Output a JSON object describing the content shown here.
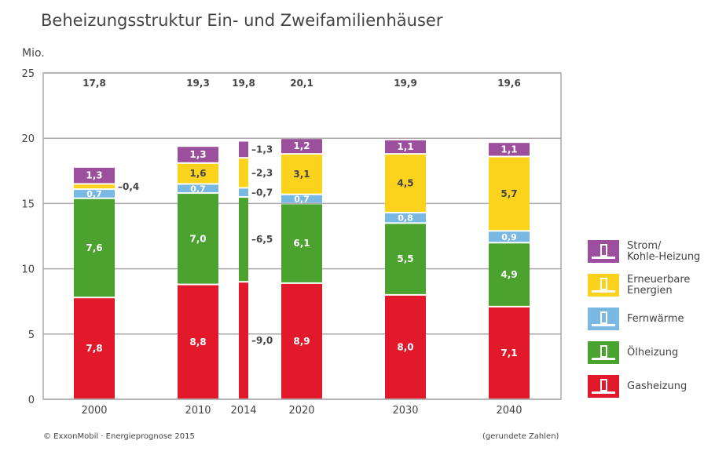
{
  "chart_data": {
    "type": "bar",
    "stacked": true,
    "title": "Beheizungsstruktur Ein- und Zweifamilienhäuser",
    "ylabel": "Mio.",
    "ylim": [
      0,
      25
    ],
    "yticks": [
      0,
      5,
      10,
      15,
      20,
      25
    ],
    "categories": [
      "2000",
      "2010",
      "2014",
      "2020",
      "2030",
      "2040"
    ],
    "totals": [
      "17,8",
      "19,3",
      "19,8",
      "20,1",
      "19,9",
      "19,6"
    ],
    "series": [
      {
        "name": "Gasheizung",
        "color": "#e2192b",
        "values": [
          7.8,
          8.8,
          9.0,
          8.9,
          8.0,
          7.1
        ],
        "labels": [
          "7,8",
          "8,8",
          "9,0",
          "8,9",
          "8,0",
          "7,1"
        ]
      },
      {
        "name": "Ölheizung",
        "color": "#4ca22f",
        "values": [
          7.6,
          7.0,
          6.5,
          6.1,
          5.5,
          4.9
        ],
        "labels": [
          "7,6",
          "7,0",
          "6,5",
          "6,1",
          "5,5",
          "4,9"
        ]
      },
      {
        "name": "Fernwärme",
        "color": "#79b8e2",
        "values": [
          0.7,
          0.7,
          0.7,
          0.7,
          0.8,
          0.9
        ],
        "labels": [
          "0,7",
          "0,7",
          "0,7",
          "0,7",
          "0,8",
          "0,9"
        ]
      },
      {
        "name": "Erneuerbare Energien",
        "color": "#fcd31c",
        "values": [
          0.4,
          1.6,
          2.3,
          3.1,
          4.5,
          5.7
        ],
        "labels": [
          "0,4",
          "1,6",
          "2,3",
          "3,1",
          "4,5",
          "5,7"
        ]
      },
      {
        "name": "Strom/ Kohle-Heizung",
        "color": "#9b4f9c",
        "values": [
          1.3,
          1.3,
          1.3,
          1.2,
          1.1,
          1.1
        ],
        "labels": [
          "1,3",
          "1,3",
          "1,3",
          "1,2",
          "1,1",
          "1,1"
        ]
      }
    ],
    "legend_position": "right",
    "grid": true
  },
  "legend": [
    {
      "label1": "Strom/",
      "label2": "Kohle-Heizung",
      "icon": "power-tower-icon",
      "color": "#9b4f9c"
    },
    {
      "label1": "Erneuerbare",
      "label2": "Energien",
      "icon": "wind-turbine-icon",
      "color": "#fcd31c"
    },
    {
      "label1": "Fernwärme",
      "label2": "",
      "icon": "house-icon",
      "color": "#79b8e2"
    },
    {
      "label1": "Ölheizung",
      "label2": "",
      "icon": "oil-tank-icon",
      "color": "#4ca22f"
    },
    {
      "label1": "Gasheizung",
      "label2": "",
      "icon": "gas-boiler-icon",
      "color": "#e2192b"
    }
  ],
  "source": "© ExxonMobil · Energieprognose 2015",
  "note": "(gerundete Zahlen)"
}
